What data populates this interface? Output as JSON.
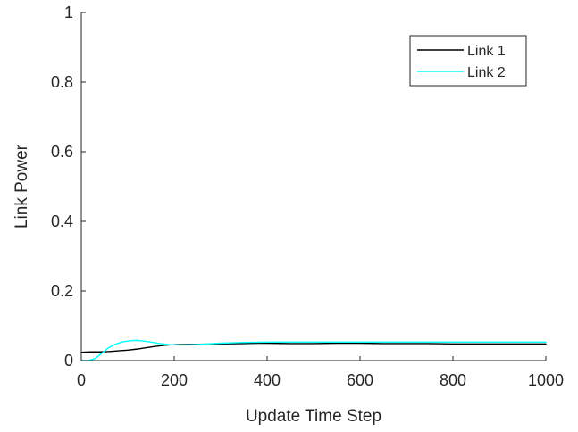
{
  "chart_data": {
    "type": "line",
    "xlabel": "Update Time Step",
    "ylabel": "Link Power",
    "xlim": [
      0,
      1000
    ],
    "ylim": [
      0,
      1
    ],
    "x_ticks": [
      0,
      200,
      400,
      600,
      800,
      1000
    ],
    "y_ticks": [
      0,
      0.2,
      0.4,
      0.6,
      0.8,
      1
    ],
    "x_tick_labels": [
      "0",
      "200",
      "400",
      "600",
      "800",
      "1000"
    ],
    "y_tick_labels": [
      "0",
      "0.2",
      "0.4",
      "0.6",
      "0.8",
      "1"
    ],
    "grid": false,
    "legend_position": "top-right",
    "series": [
      {
        "name": "Link 1",
        "color": "#000000",
        "x": [
          0,
          20,
          40,
          60,
          80,
          100,
          120,
          140,
          160,
          180,
          200,
          250,
          300,
          350,
          380,
          400,
          450,
          500,
          550,
          600,
          650,
          700,
          750,
          800,
          850,
          900,
          950,
          1000
        ],
        "y": [
          0.024,
          0.025,
          0.025,
          0.026,
          0.028,
          0.03,
          0.033,
          0.037,
          0.041,
          0.044,
          0.046,
          0.047,
          0.048,
          0.049,
          0.05,
          0.05,
          0.049,
          0.049,
          0.05,
          0.05,
          0.049,
          0.049,
          0.049,
          0.048,
          0.048,
          0.048,
          0.048,
          0.048
        ]
      },
      {
        "name": "Link 2",
        "color": "#00FFFF",
        "x": [
          0,
          15,
          30,
          45,
          60,
          75,
          90,
          105,
          120,
          135,
          150,
          170,
          190,
          210,
          230,
          260,
          300,
          350,
          400,
          450,
          500,
          550,
          600,
          650,
          700,
          750,
          800,
          850,
          900,
          950,
          1000
        ],
        "y": [
          0.0,
          0.0,
          0.006,
          0.022,
          0.038,
          0.048,
          0.054,
          0.057,
          0.058,
          0.056,
          0.053,
          0.049,
          0.046,
          0.045,
          0.045,
          0.047,
          0.05,
          0.052,
          0.053,
          0.053,
          0.053,
          0.053,
          0.053,
          0.053,
          0.053,
          0.053,
          0.053,
          0.053,
          0.053,
          0.053,
          0.053
        ]
      }
    ]
  }
}
